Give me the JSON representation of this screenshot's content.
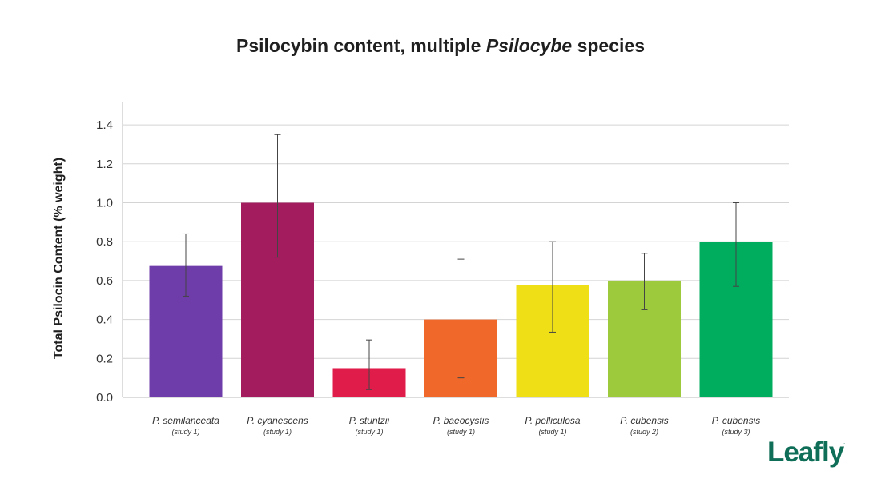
{
  "title": {
    "prefix": "Psilocybin content, multiple ",
    "italic": "Psilocybe",
    "suffix": " species"
  },
  "logo": {
    "text": "Leafly",
    "mark": "."
  },
  "chart_data": {
    "type": "bar",
    "title": "Psilocybin content, multiple Psilocybe species",
    "xlabel": "",
    "ylabel": "Total Psilocin Content (% weight)",
    "ylim": [
      0,
      1.5
    ],
    "yticks": [
      0.0,
      0.2,
      0.4,
      0.6,
      0.8,
      1.0,
      1.2,
      1.4
    ],
    "ytick_labels": [
      "0.0",
      "0.2",
      "0.4",
      "0.6",
      "0.8",
      "1.0",
      "1.2",
      "1.4"
    ],
    "grid": true,
    "legend": "none",
    "categories": [
      {
        "name": "P. semilanceata",
        "note": "(study 1)"
      },
      {
        "name": "P. cyanescens",
        "note": "(study 1)"
      },
      {
        "name": "P. stuntzii",
        "note": "(study 1)"
      },
      {
        "name": "P. baeocystis",
        "note": "(study 1)"
      },
      {
        "name": "P. pelliculosa",
        "note": "(study 1)"
      },
      {
        "name": "P. cubensis",
        "note": "(study 2)"
      },
      {
        "name": "P. cubensis",
        "note": "(study 3)"
      }
    ],
    "values": [
      0.675,
      1.0,
      0.15,
      0.4,
      0.575,
      0.6,
      0.8
    ],
    "error_low": [
      0.52,
      0.72,
      0.04,
      0.1,
      0.335,
      0.45,
      0.57
    ],
    "error_high": [
      0.84,
      1.35,
      0.295,
      0.71,
      0.8,
      0.74,
      1.0
    ],
    "colors": [
      "#6e3daa",
      "#a31d5e",
      "#e01c4b",
      "#f0682a",
      "#eedf16",
      "#9cca3c",
      "#00ad5f"
    ]
  }
}
